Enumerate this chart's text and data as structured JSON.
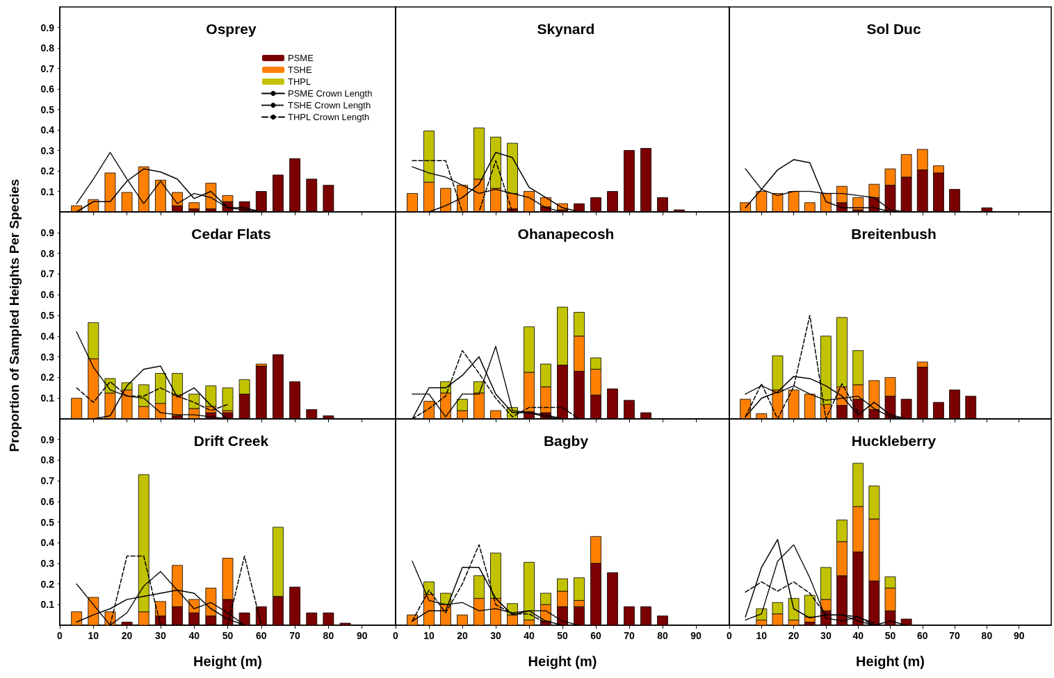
{
  "chart_data": [
    {
      "type": "bar",
      "title": "Osprey",
      "stacked": true,
      "marker": "none",
      "legend": "top",
      "tick_labels": "y",
      "x": [
        5,
        10,
        15,
        20,
        25,
        30,
        35,
        40,
        45,
        50,
        55,
        60,
        65,
        70,
        75,
        80
      ],
      "xlim": [
        0,
        100
      ],
      "xticks": [
        0,
        10,
        20,
        30,
        40,
        50,
        60,
        70,
        80,
        90
      ],
      "ylim": [
        0,
        1
      ],
      "yticks": [
        0.1,
        0.2,
        0.3,
        0.4,
        0.5,
        0.6,
        0.7,
        0.8,
        0.9
      ],
      "series": [
        {
          "name": "PSME",
          "color": "#7b0000",
          "values": [
            null,
            null,
            null,
            null,
            null,
            null,
            0.03,
            0.015,
            0.015,
            0.05,
            0.05,
            0.1,
            0.18,
            0.26,
            0.16,
            0.13
          ]
        },
        {
          "name": "TSHE",
          "color": "#ff8000",
          "values": [
            0.03,
            0.06,
            0.19,
            0.095,
            0.22,
            0.155,
            0.065,
            0.03,
            0.125,
            0.03,
            null,
            null,
            null,
            null,
            null,
            null
          ]
        },
        {
          "name": "THPL",
          "color": "#c2c200",
          "values": [
            null,
            null,
            null,
            null,
            null,
            null,
            null,
            null,
            null,
            null,
            null,
            null,
            null,
            null,
            null,
            null
          ]
        },
        {
          "type": "line",
          "name": "PSME Crown Length",
          "color": "#000000",
          "line_style": "solid",
          "x": [
            5,
            10,
            15,
            20,
            25,
            30,
            35,
            40,
            45,
            50,
            55,
            60
          ],
          "values": [
            0,
            0.05,
            0.05,
            0.15,
            0.21,
            0.195,
            0.16,
            0.065,
            0.1,
            0.02,
            0.02,
            0
          ]
        },
        {
          "type": "line",
          "name": "TSHE Crown Length",
          "color": "#000000",
          "line_style": "dotted",
          "x": [
            5,
            10,
            15,
            20,
            25,
            30,
            35,
            40,
            45,
            50,
            55,
            60
          ],
          "values": [
            0.04,
            0.16,
            0.29,
            0.16,
            0.04,
            0.15,
            0.04,
            0.09,
            0.07,
            0.02,
            0.01,
            0
          ]
        },
        {
          "type": "line",
          "name": "THPL Crown Length",
          "color": "#000000",
          "line_style": "dashed",
          "values": [
            null,
            null,
            null,
            null,
            null,
            null,
            null,
            null,
            null,
            null,
            null,
            null,
            null,
            null,
            null,
            null
          ]
        }
      ]
    },
    {
      "type": "bar",
      "title": "Skynard",
      "stacked": true,
      "marker": "none",
      "tick_labels": false,
      "x": [
        5,
        10,
        15,
        20,
        25,
        30,
        35,
        40,
        45,
        50,
        55,
        60,
        65,
        70,
        75,
        80,
        85
      ],
      "xlim": [
        0,
        100
      ],
      "xticks": [
        0,
        10,
        20,
        30,
        40,
        50,
        60,
        70,
        80,
        90
      ],
      "ylim": [
        0,
        1
      ],
      "yticks": [
        0.1,
        0.2,
        0.3,
        0.4,
        0.5,
        0.6,
        0.7,
        0.8,
        0.9
      ],
      "series": [
        {
          "color": "#7b0000",
          "values": [
            null,
            null,
            null,
            null,
            null,
            null,
            0.015,
            null,
            0.025,
            0.01,
            0.04,
            0.07,
            0.1,
            0.3,
            0.31,
            0.07,
            0.01
          ]
        },
        {
          "color": "#ff8000",
          "values": [
            0.09,
            0.145,
            0.115,
            0.13,
            0.16,
            0.115,
            0.075,
            0.1,
            0.045,
            0.03,
            null,
            null,
            null,
            null,
            null,
            null,
            null
          ]
        },
        {
          "color": "#c2c200",
          "values": [
            null,
            0.25,
            null,
            null,
            0.25,
            0.25,
            0.245,
            null,
            null,
            null,
            null,
            null,
            null,
            null,
            null,
            null,
            null
          ]
        },
        {
          "type": "line",
          "color": "#000000",
          "line_style": "solid",
          "x": [
            10,
            15,
            20,
            25,
            30,
            35,
            40,
            45,
            50,
            55
          ],
          "values": [
            0,
            0.03,
            0.07,
            0.135,
            0.29,
            0.265,
            0.12,
            0.07,
            0.02,
            0
          ]
        },
        {
          "type": "line",
          "color": "#000000",
          "line_style": "dotted",
          "x": [
            5,
            10,
            15,
            20,
            25,
            30,
            35,
            40,
            45,
            50
          ],
          "values": [
            0.22,
            0.19,
            0.17,
            0.13,
            0.09,
            0.11,
            0.09,
            0.07,
            0.02,
            0
          ]
        },
        {
          "type": "line",
          "color": "#000000",
          "line_style": "dashed",
          "x": [
            5,
            10,
            15,
            20,
            25,
            30,
            35
          ],
          "values": [
            0.25,
            0.25,
            0.25,
            0,
            0,
            0.25,
            0
          ]
        }
      ]
    },
    {
      "type": "bar",
      "title": "Sol Duc",
      "stacked": true,
      "marker": "none",
      "tick_labels": false,
      "x": [
        5,
        10,
        15,
        20,
        25,
        30,
        35,
        40,
        45,
        50,
        55,
        60,
        65,
        70,
        75,
        80
      ],
      "xlim": [
        0,
        100
      ],
      "xticks": [
        0,
        10,
        20,
        30,
        40,
        50,
        60,
        70,
        80,
        90
      ],
      "ylim": [
        0,
        1
      ],
      "yticks": [
        0.1,
        0.2,
        0.3,
        0.4,
        0.5,
        0.6,
        0.7,
        0.8,
        0.9
      ],
      "series": [
        {
          "color": "#7b0000",
          "values": [
            null,
            null,
            null,
            null,
            null,
            null,
            0.045,
            0.01,
            0.07,
            0.13,
            0.17,
            0.205,
            0.19,
            0.11,
            null,
            0.02
          ]
        },
        {
          "color": "#ff8000",
          "values": [
            0.045,
            0.1,
            0.09,
            0.1,
            0.045,
            0.09,
            0.08,
            0.06,
            0.065,
            0.08,
            0.11,
            0.1,
            0.035,
            null,
            null,
            null
          ]
        },
        {
          "type": "line",
          "color": "#000000",
          "line_style": "solid",
          "x": [
            5,
            10,
            15,
            20,
            25,
            30,
            35,
            40,
            45,
            50
          ],
          "values": [
            0.02,
            0.11,
            0.205,
            0.255,
            0.24,
            0.05,
            0.02,
            0.02,
            0.02,
            0
          ]
        },
        {
          "type": "line",
          "color": "#000000",
          "line_style": "dotted",
          "x": [
            5,
            10,
            15,
            20,
            25,
            30,
            35,
            40,
            45,
            50,
            55
          ],
          "values": [
            0.21,
            0.11,
            0.08,
            0.1,
            0.1,
            0.09,
            0.09,
            0.08,
            0.07,
            0.01,
            0
          ]
        }
      ]
    },
    {
      "type": "bar",
      "title": "Cedar Flats",
      "ylabel": "Proportion of Sampled Heights Per Species",
      "stacked": true,
      "marker": "none",
      "tick_labels": "y",
      "x": [
        5,
        10,
        15,
        20,
        25,
        30,
        35,
        40,
        45,
        50,
        55,
        60,
        65,
        70,
        75,
        80
      ],
      "xlim": [
        0,
        100
      ],
      "xticks": [
        0,
        10,
        20,
        30,
        40,
        50,
        60,
        70,
        80,
        90
      ],
      "ylim": [
        0,
        1
      ],
      "yticks": [
        0.1,
        0.2,
        0.3,
        0.4,
        0.5,
        0.6,
        0.7,
        0.8,
        0.9
      ],
      "series": [
        {
          "color": "#7b0000",
          "values": [
            null,
            null,
            null,
            null,
            null,
            null,
            0.015,
            null,
            0.03,
            0.03,
            0.12,
            0.255,
            0.31,
            0.18,
            0.045,
            0.015
          ]
        },
        {
          "color": "#ff8000",
          "values": [
            0.1,
            0.29,
            0.125,
            0.14,
            0.06,
            0.075,
            0.1,
            0.05,
            0.03,
            0.01,
            null,
            0.01,
            null,
            null,
            null,
            null
          ]
        },
        {
          "color": "#c2c200",
          "values": [
            null,
            0.175,
            0.07,
            0.035,
            0.105,
            0.145,
            0.105,
            0.07,
            0.1,
            0.11,
            0.07,
            null,
            null,
            null,
            null,
            null
          ]
        },
        {
          "type": "line",
          "color": "#000000",
          "line_style": "solid",
          "x": [
            10,
            15,
            20,
            25,
            30,
            35,
            40,
            45,
            50
          ],
          "values": [
            0,
            0.015,
            0.16,
            0.24,
            0.255,
            0.105,
            0.15,
            0.065,
            0
          ]
        },
        {
          "type": "line",
          "color": "#000000",
          "line_style": "dotted",
          "x": [
            5,
            10,
            15,
            20,
            25,
            30,
            35,
            40,
            45,
            50
          ],
          "values": [
            0.42,
            0.25,
            0.14,
            0.11,
            0.1,
            0.03,
            0.02,
            0.02,
            0.01,
            0
          ]
        },
        {
          "type": "line",
          "color": "#000000",
          "line_style": "dashed",
          "x": [
            5,
            10,
            15,
            20,
            25,
            30,
            35,
            40,
            45,
            50
          ],
          "values": [
            0.15,
            0.08,
            0.18,
            0.11,
            0.11,
            0.15,
            0.11,
            0.08,
            0.04,
            0.07
          ]
        }
      ]
    },
    {
      "type": "bar",
      "title": "Ohanapecosh",
      "stacked": true,
      "marker": "none",
      "tick_labels": false,
      "x": [
        10,
        15,
        20,
        25,
        30,
        35,
        40,
        45,
        50,
        55,
        60,
        65,
        70,
        75
      ],
      "xlim": [
        0,
        100
      ],
      "xticks": [
        0,
        10,
        20,
        30,
        40,
        50,
        60,
        70,
        80,
        90
      ],
      "ylim": [
        0,
        1
      ],
      "yticks": [
        0.1,
        0.2,
        0.3,
        0.4,
        0.5,
        0.6,
        0.7,
        0.8,
        0.9
      ],
      "series": [
        {
          "color": "#7b0000",
          "values": [
            null,
            null,
            null,
            null,
            null,
            null,
            0.035,
            0.03,
            0.26,
            0.23,
            0.115,
            0.145,
            0.09,
            0.03
          ]
        },
        {
          "color": "#ff8000",
          "values": [
            0.085,
            0.125,
            0.04,
            0.125,
            0.04,
            null,
            0.19,
            0.125,
            null,
            0.17,
            0.125,
            null,
            null,
            null
          ]
        },
        {
          "color": "#c2c200",
          "values": [
            null,
            0.055,
            0.055,
            0.055,
            null,
            0.055,
            0.22,
            0.11,
            0.28,
            0.115,
            0.055,
            null,
            null,
            null
          ]
        },
        {
          "type": "line",
          "color": "#000000",
          "line_style": "solid",
          "x": [
            5,
            10,
            15,
            20,
            25,
            30,
            35,
            40,
            45,
            50
          ],
          "values": [
            0,
            0.15,
            0.15,
            0.21,
            0.3,
            0.12,
            0.03,
            0.03,
            0.01,
            0
          ]
        },
        {
          "type": "line",
          "color": "#000000",
          "line_style": "dotted",
          "x": [
            5,
            10,
            15,
            20,
            25,
            30,
            35,
            40,
            45,
            50
          ],
          "values": [
            0.12,
            0.12,
            0.01,
            0.12,
            0.12,
            0.35,
            0.04,
            0.03,
            0.02,
            0
          ]
        },
        {
          "type": "line",
          "color": "#000000",
          "line_style": "dashed",
          "x": [
            5,
            10,
            15,
            20,
            25,
            30,
            35,
            40,
            45,
            50,
            55
          ],
          "values": [
            0,
            0.05,
            0.11,
            0.33,
            0.22,
            0.1,
            0.01,
            0.055,
            0.055,
            0.055,
            0
          ]
        }
      ]
    },
    {
      "type": "bar",
      "title": "Breitenbush",
      "stacked": true,
      "marker": "none",
      "tick_labels": false,
      "x": [
        5,
        10,
        15,
        20,
        25,
        30,
        35,
        40,
        45,
        50,
        55,
        60,
        65,
        70,
        75
      ],
      "xlim": [
        0,
        100
      ],
      "xticks": [
        0,
        10,
        20,
        30,
        40,
        50,
        60,
        70,
        80,
        90
      ],
      "ylim": [
        0,
        1
      ],
      "yticks": [
        0.1,
        0.2,
        0.3,
        0.4,
        0.5,
        0.6,
        0.7,
        0.8,
        0.9
      ],
      "series": [
        {
          "color": "#7b0000",
          "values": [
            null,
            null,
            null,
            null,
            null,
            null,
            0.065,
            0.095,
            0.045,
            0.11,
            0.095,
            0.25,
            0.08,
            0.14,
            0.11
          ]
        },
        {
          "color": "#ff8000",
          "values": [
            0.095,
            0.025,
            0.14,
            0.14,
            0.12,
            0.07,
            0.09,
            0.07,
            0.14,
            0.09,
            null,
            0.025,
            null,
            null,
            null
          ]
        },
        {
          "color": "#c2c200",
          "values": [
            null,
            null,
            0.165,
            null,
            null,
            0.33,
            0.335,
            0.165,
            null,
            null,
            null,
            null,
            null,
            null,
            null
          ]
        },
        {
          "type": "line",
          "color": "#000000",
          "line_style": "solid",
          "x": [
            5,
            10,
            15,
            20,
            25,
            30,
            35,
            40,
            45,
            50,
            55
          ],
          "values": [
            0.01,
            0.1,
            0.13,
            0.205,
            0.195,
            0.16,
            0.11,
            0.02,
            0.08,
            0.02,
            0
          ]
        },
        {
          "type": "line",
          "color": "#000000",
          "line_style": "dotted",
          "x": [
            5,
            10,
            15,
            20,
            25,
            30,
            35,
            40,
            45,
            50,
            55
          ],
          "values": [
            0.12,
            0.16,
            0.125,
            0.16,
            0.12,
            0.09,
            0.1,
            0.11,
            0.05,
            0.01,
            0
          ]
        },
        {
          "type": "line",
          "color": "#000000",
          "line_style": "dashed",
          "x": [
            5,
            10,
            15,
            20,
            25,
            30,
            35,
            40
          ],
          "values": [
            0.01,
            0.17,
            0,
            0.155,
            0.5,
            0,
            0.17,
            0.03
          ]
        }
      ]
    },
    {
      "type": "bar",
      "title": "Drift Creek",
      "xlabel": "Height (m)",
      "stacked": true,
      "marker": "none",
      "x": [
        5,
        10,
        15,
        20,
        25,
        30,
        35,
        40,
        45,
        50,
        55,
        60,
        65,
        70,
        75,
        80,
        85
      ],
      "xlim": [
        0,
        100
      ],
      "xticks": [
        0,
        10,
        20,
        30,
        40,
        50,
        60,
        70,
        80,
        90
      ],
      "ylim": [
        0,
        1
      ],
      "yticks": [
        0.1,
        0.2,
        0.3,
        0.4,
        0.5,
        0.6,
        0.7,
        0.8,
        0.9
      ],
      "series": [
        {
          "color": "#7b0000",
          "values": [
            null,
            null,
            null,
            0.015,
            null,
            0.045,
            0.09,
            0.06,
            0.045,
            0.125,
            0.06,
            0.09,
            0.14,
            0.185,
            0.06,
            0.06,
            0.01
          ]
        },
        {
          "color": "#ff8000",
          "values": [
            0.065,
            0.135,
            0.065,
            null,
            0.065,
            0.07,
            0.2,
            0.065,
            0.135,
            0.2,
            null,
            null,
            null,
            null,
            null,
            null,
            null
          ]
        },
        {
          "color": "#c2c200",
          "values": [
            null,
            null,
            null,
            null,
            0.665,
            null,
            null,
            null,
            null,
            null,
            null,
            null,
            0.335,
            null,
            null,
            null,
            null
          ]
        },
        {
          "type": "line",
          "color": "#000000",
          "line_style": "solid",
          "x": [
            5,
            10,
            15,
            20,
            25,
            30,
            35,
            40,
            45,
            50,
            55
          ],
          "values": [
            0.015,
            0.05,
            0.08,
            0.125,
            0.14,
            0.155,
            0.17,
            0.155,
            0.08,
            0.03,
            0
          ]
        },
        {
          "type": "line",
          "color": "#000000",
          "line_style": "dotted",
          "x": [
            5,
            10,
            15,
            20,
            25,
            30,
            35,
            40,
            45,
            50,
            55
          ],
          "values": [
            0.2,
            0.1,
            0,
            0.06,
            0.19,
            0.26,
            0.17,
            0.08,
            0.11,
            0.06,
            0
          ]
        },
        {
          "type": "line",
          "color": "#000000",
          "line_style": "dashed",
          "x": [
            15,
            20,
            25,
            30,
            35,
            40,
            45,
            50,
            55,
            60
          ],
          "values": [
            0,
            0.335,
            0.335,
            0,
            0,
            0,
            0,
            0,
            0.335,
            0
          ]
        }
      ]
    },
    {
      "type": "bar",
      "title": "Bagby",
      "xlabel": "Height (m)",
      "stacked": true,
      "marker": "none",
      "tick_labels": "x",
      "x": [
        5,
        10,
        15,
        20,
        25,
        30,
        35,
        40,
        45,
        50,
        55,
        60,
        65,
        70,
        75,
        80
      ],
      "xlim": [
        0,
        100
      ],
      "xticks": [
        0,
        10,
        20,
        30,
        40,
        50,
        60,
        70,
        80,
        90
      ],
      "ylim": [
        0,
        1
      ],
      "yticks": [
        0.1,
        0.2,
        0.3,
        0.4,
        0.5,
        0.6,
        0.7,
        0.8,
        0.9
      ],
      "series": [
        {
          "color": "#7b0000",
          "values": [
            null,
            null,
            null,
            null,
            null,
            null,
            null,
            null,
            0.02,
            0.09,
            0.09,
            0.3,
            0.255,
            0.09,
            0.09,
            0.045
          ]
        },
        {
          "color": "#ff8000",
          "values": [
            0.05,
            0.15,
            0.1,
            0.05,
            0.13,
            0.13,
            0.05,
            0.025,
            0.08,
            0.075,
            0.03,
            0.13,
            null,
            null,
            null,
            null
          ]
        },
        {
          "color": "#c2c200",
          "values": [
            null,
            0.06,
            0.055,
            null,
            0.11,
            0.22,
            0.055,
            0.28,
            0.055,
            0.06,
            0.11,
            null,
            null,
            null,
            null,
            null
          ]
        },
        {
          "type": "line",
          "color": "#000000",
          "line_style": "solid",
          "x": [
            5,
            10,
            15,
            20,
            25,
            30,
            35,
            40,
            45,
            50
          ],
          "values": [
            0.02,
            0.07,
            0.07,
            0.28,
            0.28,
            0.13,
            0.05,
            0.07,
            0.02,
            0
          ]
        },
        {
          "type": "line",
          "color": "#000000",
          "line_style": "dotted",
          "x": [
            5,
            10,
            15,
            20,
            25,
            30,
            35,
            40,
            45,
            50,
            55
          ],
          "values": [
            0.31,
            0.12,
            0.1,
            0.11,
            0.07,
            0.08,
            0.06,
            0.07,
            0.07,
            0.02,
            0
          ]
        },
        {
          "type": "line",
          "color": "#000000",
          "line_style": "dashed",
          "x": [
            5,
            10,
            15,
            20,
            25,
            30,
            35,
            40,
            45
          ],
          "values": [
            0.02,
            0.17,
            0.06,
            0.2,
            0.39,
            0.1,
            0.055,
            0.055,
            0.01
          ]
        }
      ]
    },
    {
      "type": "bar",
      "title": "Huckleberry",
      "xlabel": "Height (m)",
      "stacked": true,
      "marker": "none",
      "tick_labels": "x",
      "x": [
        10,
        15,
        20,
        25,
        30,
        35,
        40,
        45,
        50,
        55
      ],
      "xlim": [
        0,
        100
      ],
      "xticks": [
        0,
        10,
        20,
        30,
        40,
        50,
        60,
        70,
        80,
        90
      ],
      "ylim": [
        0,
        1
      ],
      "yticks": [
        0.1,
        0.2,
        0.3,
        0.4,
        0.5,
        0.6,
        0.7,
        0.8,
        0.9
      ],
      "series": [
        {
          "color": "#7b0000",
          "values": [
            null,
            null,
            null,
            0.015,
            0.07,
            0.24,
            0.355,
            0.215,
            0.07,
            0.03
          ]
        },
        {
          "color": "#ff8000",
          "values": [
            0.025,
            0.055,
            0.025,
            0.025,
            0.055,
            0.165,
            0.22,
            0.3,
            0.11,
            null
          ]
        },
        {
          "color": "#c2c200",
          "values": [
            0.055,
            0.055,
            0.105,
            0.105,
            0.155,
            0.105,
            0.21,
            0.16,
            0.055,
            null
          ]
        },
        {
          "type": "line",
          "color": "#000000",
          "line_style": "solid",
          "x": [
            5,
            10,
            15,
            20,
            25,
            30,
            35,
            40,
            45,
            50,
            55
          ],
          "values": [
            0.04,
            0.28,
            0.415,
            0.08,
            0.035,
            0.05,
            0.05,
            0.02,
            0,
            0.02,
            0
          ]
        },
        {
          "type": "line",
          "color": "#000000",
          "line_style": "dotted",
          "x": [
            5,
            10,
            15,
            20,
            25,
            30,
            35,
            40,
            45
          ],
          "values": [
            0.025,
            0.055,
            0.31,
            0.39,
            0.23,
            0.035,
            0.02,
            0.04,
            0.01
          ]
        },
        {
          "type": "line",
          "color": "#000000",
          "line_style": "dashed",
          "x": [
            5,
            10,
            15,
            20,
            25,
            30,
            35,
            40,
            45
          ],
          "values": [
            0.16,
            0.21,
            0.165,
            0.21,
            0.155,
            0.05,
            0.05,
            0.04,
            0
          ]
        }
      ]
    }
  ]
}
